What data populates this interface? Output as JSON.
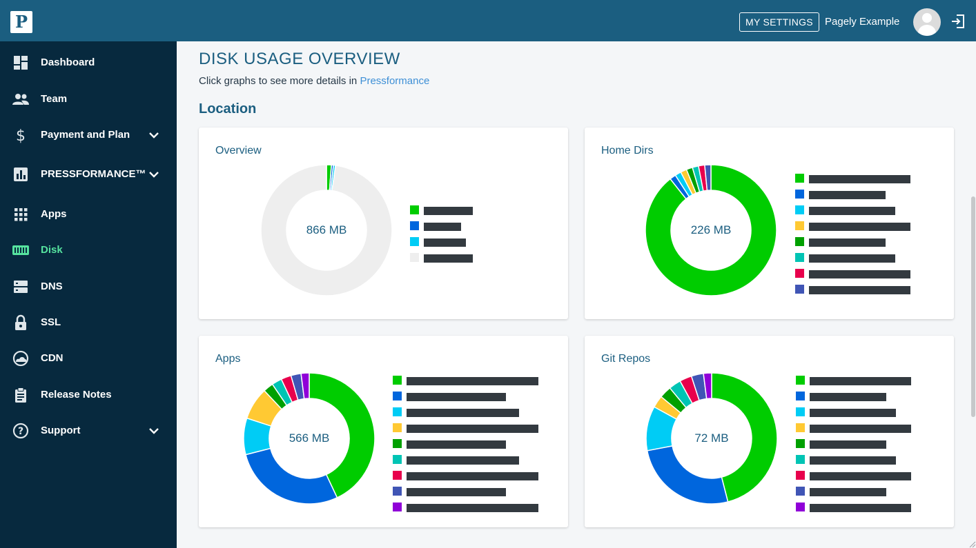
{
  "header": {
    "logo_letter": "P",
    "settings_label": "MY SETTINGS",
    "user_name": "Pagely Example"
  },
  "sidebar": {
    "items": [
      {
        "label": "Dashboard",
        "icon": "dashboard-icon"
      },
      {
        "label": "Team",
        "icon": "team-icon"
      },
      {
        "label": "Payment and Plan",
        "icon": "dollar-icon",
        "expandable": true
      },
      {
        "label": "PRESSFORMANCE™",
        "icon": "bar-chart-icon",
        "expandable": true
      },
      {
        "label": "Apps",
        "icon": "apps-grid-icon"
      },
      {
        "label": "Disk",
        "icon": "disk-icon",
        "active": true
      },
      {
        "label": "DNS",
        "icon": "server-icon"
      },
      {
        "label": "SSL",
        "icon": "lock-icon"
      },
      {
        "label": "CDN",
        "icon": "cloud-icon"
      },
      {
        "label": "Release Notes",
        "icon": "clipboard-icon"
      },
      {
        "label": "Support",
        "icon": "help-icon",
        "expandable": true
      }
    ]
  },
  "main": {
    "title": "DISK USAGE OVERVIEW",
    "subtitle_text": "Click graphs to see more details in ",
    "subtitle_link": "Pressformance",
    "section_title": "Location"
  },
  "colors": {
    "green": "#00cc00",
    "blue": "#0066dd",
    "cyan": "#00ccf5",
    "yellow": "#ffc933",
    "dark_green": "#00a000",
    "teal": "#00c4b4",
    "crimson": "#e8004c",
    "indigo": "#4055b5",
    "purple": "#9000d8",
    "light_gray": "#eeeeee",
    "legend_bar": "#333a40",
    "accent_active": "#56e39f"
  },
  "chart_data": [
    {
      "type": "pie",
      "title": "Overview",
      "center_label": "866 MB",
      "slices": [
        {
          "value": 12,
          "color": "#00cc00"
        },
        {
          "value": 5,
          "color": "#0066dd"
        },
        {
          "value": 5,
          "color": "#00ccf5"
        },
        {
          "value": 978,
          "color": "#eeeeee"
        }
      ]
    },
    {
      "type": "pie",
      "title": "Home Dirs",
      "center_label": "226 MB",
      "slices": [
        {
          "value": 880,
          "color": "#00cc00"
        },
        {
          "value": 15,
          "color": "#0066dd"
        },
        {
          "value": 15,
          "color": "#00ccf5"
        },
        {
          "value": 15,
          "color": "#ffc933"
        },
        {
          "value": 15,
          "color": "#00a000"
        },
        {
          "value": 15,
          "color": "#00c4b4"
        },
        {
          "value": 15,
          "color": "#e8004c"
        },
        {
          "value": 15,
          "color": "#4055b5"
        }
      ]
    },
    {
      "type": "pie",
      "title": "Apps",
      "center_label": "566 MB",
      "slices": [
        {
          "value": 430,
          "color": "#00cc00"
        },
        {
          "value": 280,
          "color": "#0066dd"
        },
        {
          "value": 90,
          "color": "#00ccf5"
        },
        {
          "value": 80,
          "color": "#ffc933"
        },
        {
          "value": 25,
          "color": "#00a000"
        },
        {
          "value": 25,
          "color": "#00c4b4"
        },
        {
          "value": 25,
          "color": "#e8004c"
        },
        {
          "value": 25,
          "color": "#4055b5"
        },
        {
          "value": 20,
          "color": "#9000d8"
        }
      ]
    },
    {
      "type": "pie",
      "title": "Git Repos",
      "center_label": "72 MB",
      "slices": [
        {
          "value": 460,
          "color": "#00cc00"
        },
        {
          "value": 260,
          "color": "#0066dd"
        },
        {
          "value": 110,
          "color": "#00ccf5"
        },
        {
          "value": 30,
          "color": "#ffc933"
        },
        {
          "value": 30,
          "color": "#00a000"
        },
        {
          "value": 30,
          "color": "#00c4b4"
        },
        {
          "value": 30,
          "color": "#e8004c"
        },
        {
          "value": 30,
          "color": "#4055b5"
        },
        {
          "value": 20,
          "color": "#9000d8"
        }
      ]
    }
  ]
}
